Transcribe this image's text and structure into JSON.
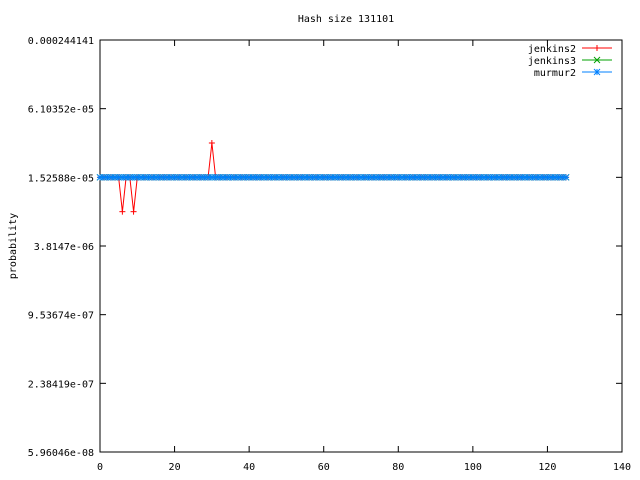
{
  "chart_data": {
    "type": "line",
    "title": "Hash size 131101",
    "xlabel": "",
    "ylabel": "probability",
    "xlim": [
      0,
      140
    ],
    "ylim": [
      5.96046e-08,
      0.000244141
    ],
    "yscale": "log",
    "x_ticks": [
      0,
      20,
      40,
      60,
      80,
      100,
      120,
      140
    ],
    "x_tick_labels": [
      "0",
      "20",
      "40",
      "60",
      "80",
      "100",
      "120",
      "140"
    ],
    "y_ticks": [
      0.000244141,
      6.10352e-05,
      1.52588e-05,
      3.8147e-06,
      9.53674e-07,
      2.38419e-07,
      5.96046e-08
    ],
    "y_tick_labels": [
      "0.000244141",
      "6.10352e-05",
      "1.52588e-05",
      "3.8147e-06",
      "9.53674e-07",
      "2.38419e-07",
      "5.96046e-08"
    ],
    "legend_position": "top-right",
    "series": [
      {
        "name": "jenkins2",
        "color": "#ff0000",
        "marker": "plus",
        "x": [
          0,
          1,
          2,
          3,
          4,
          5,
          6,
          7,
          8,
          9,
          10,
          11,
          12,
          13,
          14,
          15,
          16,
          17,
          18,
          19,
          20,
          21,
          22,
          23,
          24,
          25,
          26,
          27,
          28,
          29,
          30,
          31,
          32,
          33,
          34,
          35,
          36,
          37,
          38,
          39,
          40,
          41,
          42,
          43,
          44,
          45,
          46,
          47,
          48,
          49,
          50,
          51,
          52,
          53,
          54,
          55,
          56,
          57,
          58,
          59,
          60,
          61,
          62,
          63,
          64,
          65,
          66,
          67,
          68,
          69,
          70,
          71,
          72,
          73,
          74,
          75,
          76,
          77,
          78,
          79,
          80,
          81,
          82,
          83,
          84,
          85,
          86,
          87,
          88,
          89,
          90,
          91,
          92,
          93,
          94,
          95,
          96,
          97,
          98,
          99,
          100,
          101,
          102,
          103,
          104,
          105,
          106,
          107,
          108,
          109,
          110,
          111,
          112,
          113,
          114,
          115,
          116,
          117,
          118,
          119,
          120,
          121,
          122,
          123,
          124,
          125
        ],
        "values": [
          1.52588e-05,
          1.52588e-05,
          1.52588e-05,
          1.52588e-05,
          1.52588e-05,
          1.52588e-05,
          7.62939e-06,
          1.52588e-05,
          1.52588e-05,
          7.62939e-06,
          1.52588e-05,
          1.52588e-05,
          1.52588e-05,
          1.52588e-05,
          1.52588e-05,
          1.52588e-05,
          1.52588e-05,
          1.52588e-05,
          1.52588e-05,
          1.52588e-05,
          1.52588e-05,
          1.52588e-05,
          1.52588e-05,
          1.52588e-05,
          1.52588e-05,
          1.52588e-05,
          1.52588e-05,
          1.52588e-05,
          1.52588e-05,
          1.52588e-05,
          3.05176e-05,
          1.52588e-05,
          1.52588e-05,
          1.52588e-05,
          1.52588e-05,
          1.52588e-05,
          1.52588e-05,
          1.52588e-05,
          1.52588e-05,
          1.52588e-05,
          1.52588e-05,
          1.52588e-05,
          1.52588e-05,
          1.52588e-05,
          1.52588e-05,
          1.52588e-05,
          1.52588e-05,
          1.52588e-05,
          1.52588e-05,
          1.52588e-05,
          1.52588e-05,
          1.52588e-05,
          1.52588e-05,
          1.52588e-05,
          1.52588e-05,
          1.52588e-05,
          1.52588e-05,
          1.52588e-05,
          1.52588e-05,
          1.52588e-05,
          1.52588e-05,
          1.52588e-05,
          1.52588e-05,
          1.52588e-05,
          1.52588e-05,
          1.52588e-05,
          1.52588e-05,
          1.52588e-05,
          1.52588e-05,
          1.52588e-05,
          1.52588e-05,
          1.52588e-05,
          1.52588e-05,
          1.52588e-05,
          1.52588e-05,
          1.52588e-05,
          1.52588e-05,
          1.52588e-05,
          1.52588e-05,
          1.52588e-05,
          1.52588e-05,
          1.52588e-05,
          1.52588e-05,
          1.52588e-05,
          1.52588e-05,
          1.52588e-05,
          1.52588e-05,
          1.52588e-05,
          1.52588e-05,
          1.52588e-05,
          1.52588e-05,
          1.52588e-05,
          1.52588e-05,
          1.52588e-05,
          1.52588e-05,
          1.52588e-05,
          1.52588e-05,
          1.52588e-05,
          1.52588e-05,
          1.52588e-05,
          1.52588e-05,
          1.52588e-05,
          1.52588e-05,
          1.52588e-05,
          1.52588e-05,
          1.52588e-05,
          1.52588e-05,
          1.52588e-05,
          1.52588e-05,
          1.52588e-05,
          1.52588e-05,
          1.52588e-05,
          1.52588e-05,
          1.52588e-05,
          1.52588e-05,
          1.52588e-05,
          1.52588e-05,
          1.52588e-05,
          1.52588e-05,
          1.52588e-05,
          1.52588e-05,
          1.52588e-05,
          1.52588e-05,
          1.52588e-05,
          1.52588e-05,
          1.52588e-05
        ]
      },
      {
        "name": "jenkins3",
        "color": "#00a000",
        "marker": "cross",
        "x": [
          0,
          1,
          2,
          3,
          4,
          5,
          6,
          7,
          8,
          9,
          10,
          11,
          12,
          13,
          14,
          15,
          16,
          17,
          18,
          19,
          20,
          21,
          22,
          23,
          24,
          25,
          26,
          27,
          28,
          29,
          30,
          31,
          32,
          33,
          34,
          35,
          36,
          37,
          38,
          39,
          40,
          41,
          42,
          43,
          44,
          45,
          46,
          47,
          48,
          49,
          50,
          51,
          52,
          53,
          54,
          55,
          56,
          57,
          58,
          59,
          60,
          61,
          62,
          63,
          64,
          65,
          66,
          67,
          68,
          69,
          70,
          71,
          72,
          73,
          74,
          75,
          76,
          77,
          78,
          79,
          80,
          81,
          82,
          83,
          84,
          85,
          86,
          87,
          88,
          89,
          90,
          91,
          92,
          93,
          94,
          95,
          96,
          97,
          98,
          99,
          100,
          101,
          102,
          103,
          104,
          105,
          106,
          107,
          108,
          109,
          110,
          111,
          112,
          113,
          114,
          115,
          116,
          117,
          118,
          119,
          120,
          121,
          122,
          123,
          124,
          125
        ],
        "values": [
          1.52588e-05,
          1.52588e-05,
          1.52588e-05,
          1.52588e-05,
          1.52588e-05,
          1.52588e-05,
          1.52588e-05,
          1.52588e-05,
          1.52588e-05,
          1.52588e-05,
          1.52588e-05,
          1.52588e-05,
          1.52588e-05,
          1.52588e-05,
          1.52588e-05,
          1.52588e-05,
          1.52588e-05,
          1.52588e-05,
          1.52588e-05,
          1.52588e-05,
          1.52588e-05,
          1.52588e-05,
          1.52588e-05,
          1.52588e-05,
          1.52588e-05,
          1.52588e-05,
          1.52588e-05,
          1.52588e-05,
          1.52588e-05,
          1.52588e-05,
          1.52588e-05,
          1.52588e-05,
          1.52588e-05,
          1.52588e-05,
          1.52588e-05,
          1.52588e-05,
          1.52588e-05,
          1.52588e-05,
          1.52588e-05,
          1.52588e-05,
          1.52588e-05,
          1.52588e-05,
          1.52588e-05,
          1.52588e-05,
          1.52588e-05,
          1.52588e-05,
          1.52588e-05,
          1.52588e-05,
          1.52588e-05,
          1.52588e-05,
          1.52588e-05,
          1.52588e-05,
          1.52588e-05,
          1.52588e-05,
          1.52588e-05,
          1.52588e-05,
          1.52588e-05,
          1.52588e-05,
          1.52588e-05,
          1.52588e-05,
          1.52588e-05,
          1.52588e-05,
          1.52588e-05,
          1.52588e-05,
          1.52588e-05,
          1.52588e-05,
          1.52588e-05,
          1.52588e-05,
          1.52588e-05,
          1.52588e-05,
          1.52588e-05,
          1.52588e-05,
          1.52588e-05,
          1.52588e-05,
          1.52588e-05,
          1.52588e-05,
          1.52588e-05,
          1.52588e-05,
          1.52588e-05,
          1.52588e-05,
          1.52588e-05,
          1.52588e-05,
          1.52588e-05,
          1.52588e-05,
          1.52588e-05,
          1.52588e-05,
          1.52588e-05,
          1.52588e-05,
          1.52588e-05,
          1.52588e-05,
          1.52588e-05,
          1.52588e-05,
          1.52588e-05,
          1.52588e-05,
          1.52588e-05,
          1.52588e-05,
          1.52588e-05,
          1.52588e-05,
          1.52588e-05,
          1.52588e-05,
          1.52588e-05,
          1.52588e-05,
          1.52588e-05,
          1.52588e-05,
          1.52588e-05,
          1.52588e-05,
          1.52588e-05,
          1.52588e-05,
          1.52588e-05,
          1.52588e-05,
          1.52588e-05,
          1.52588e-05,
          1.52588e-05,
          1.52588e-05,
          1.52588e-05,
          1.52588e-05,
          1.52588e-05,
          1.52588e-05,
          1.52588e-05,
          1.52588e-05,
          1.52588e-05,
          1.52588e-05,
          1.52588e-05,
          1.52588e-05,
          1.52588e-05,
          1.52588e-05
        ]
      },
      {
        "name": "murmur2",
        "color": "#0080ff",
        "marker": "star",
        "x": [
          0,
          1,
          2,
          3,
          4,
          5,
          6,
          7,
          8,
          9,
          10,
          11,
          12,
          13,
          14,
          15,
          16,
          17,
          18,
          19,
          20,
          21,
          22,
          23,
          24,
          25,
          26,
          27,
          28,
          29,
          30,
          31,
          32,
          33,
          34,
          35,
          36,
          37,
          38,
          39,
          40,
          41,
          42,
          43,
          44,
          45,
          46,
          47,
          48,
          49,
          50,
          51,
          52,
          53,
          54,
          55,
          56,
          57,
          58,
          59,
          60,
          61,
          62,
          63,
          64,
          65,
          66,
          67,
          68,
          69,
          70,
          71,
          72,
          73,
          74,
          75,
          76,
          77,
          78,
          79,
          80,
          81,
          82,
          83,
          84,
          85,
          86,
          87,
          88,
          89,
          90,
          91,
          92,
          93,
          94,
          95,
          96,
          97,
          98,
          99,
          100,
          101,
          102,
          103,
          104,
          105,
          106,
          107,
          108,
          109,
          110,
          111,
          112,
          113,
          114,
          115,
          116,
          117,
          118,
          119,
          120,
          121,
          122,
          123,
          124,
          125
        ],
        "values": [
          1.52588e-05,
          1.52588e-05,
          1.52588e-05,
          1.52588e-05,
          1.52588e-05,
          1.52588e-05,
          1.52588e-05,
          1.52588e-05,
          1.52588e-05,
          1.52588e-05,
          1.52588e-05,
          1.52588e-05,
          1.52588e-05,
          1.52588e-05,
          1.52588e-05,
          1.52588e-05,
          1.52588e-05,
          1.52588e-05,
          1.52588e-05,
          1.52588e-05,
          1.52588e-05,
          1.52588e-05,
          1.52588e-05,
          1.52588e-05,
          1.52588e-05,
          1.52588e-05,
          1.52588e-05,
          1.52588e-05,
          1.52588e-05,
          1.52588e-05,
          1.52588e-05,
          1.52588e-05,
          1.52588e-05,
          1.52588e-05,
          1.52588e-05,
          1.52588e-05,
          1.52588e-05,
          1.52588e-05,
          1.52588e-05,
          1.52588e-05,
          1.52588e-05,
          1.52588e-05,
          1.52588e-05,
          1.52588e-05,
          1.52588e-05,
          1.52588e-05,
          1.52588e-05,
          1.52588e-05,
          1.52588e-05,
          1.52588e-05,
          1.52588e-05,
          1.52588e-05,
          1.52588e-05,
          1.52588e-05,
          1.52588e-05,
          1.52588e-05,
          1.52588e-05,
          1.52588e-05,
          1.52588e-05,
          1.52588e-05,
          1.52588e-05,
          1.52588e-05,
          1.52588e-05,
          1.52588e-05,
          1.52588e-05,
          1.52588e-05,
          1.52588e-05,
          1.52588e-05,
          1.52588e-05,
          1.52588e-05,
          1.52588e-05,
          1.52588e-05,
          1.52588e-05,
          1.52588e-05,
          1.52588e-05,
          1.52588e-05,
          1.52588e-05,
          1.52588e-05,
          1.52588e-05,
          1.52588e-05,
          1.52588e-05,
          1.52588e-05,
          1.52588e-05,
          1.52588e-05,
          1.52588e-05,
          1.52588e-05,
          1.52588e-05,
          1.52588e-05,
          1.52588e-05,
          1.52588e-05,
          1.52588e-05,
          1.52588e-05,
          1.52588e-05,
          1.52588e-05,
          1.52588e-05,
          1.52588e-05,
          1.52588e-05,
          1.52588e-05,
          1.52588e-05,
          1.52588e-05,
          1.52588e-05,
          1.52588e-05,
          1.52588e-05,
          1.52588e-05,
          1.52588e-05,
          1.52588e-05,
          1.52588e-05,
          1.52588e-05,
          1.52588e-05,
          1.52588e-05,
          1.52588e-05,
          1.52588e-05,
          1.52588e-05,
          1.52588e-05,
          1.52588e-05,
          1.52588e-05,
          1.52588e-05,
          1.52588e-05,
          1.52588e-05,
          1.52588e-05,
          1.52588e-05,
          1.52588e-05,
          1.52588e-05,
          1.52588e-05,
          1.52588e-05,
          1.52588e-05
        ]
      }
    ]
  }
}
